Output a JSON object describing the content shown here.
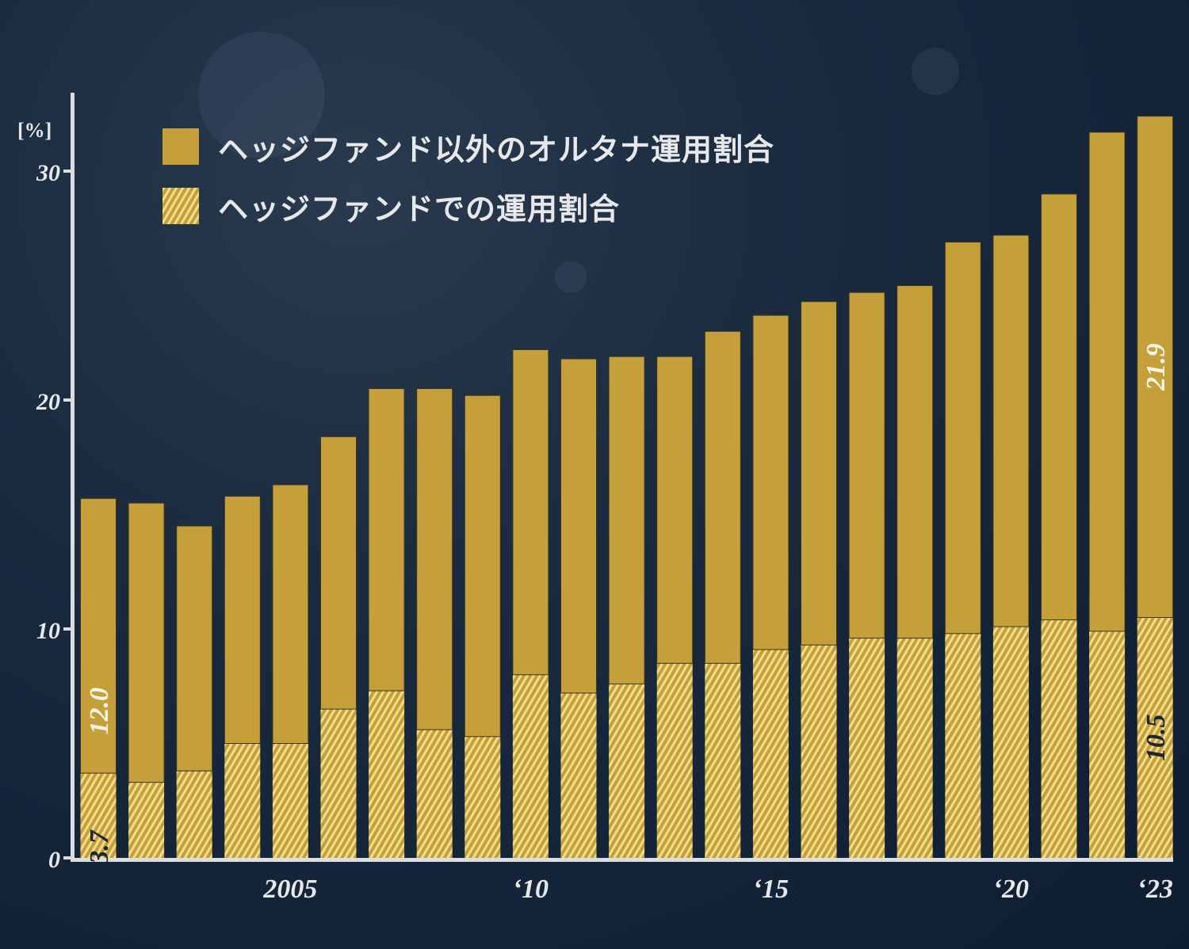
{
  "chart_data": {
    "type": "bar",
    "stacked": true,
    "title": "",
    "xlabel": "",
    "ylabel": "[%]",
    "ylim": [
      0,
      33
    ],
    "yticks": [
      0,
      10,
      20,
      30
    ],
    "grid": false,
    "legend_position": "top-left inside",
    "categories": [
      "2001",
      "2002",
      "2003",
      "2004",
      "2005",
      "2006",
      "2007",
      "2008",
      "2009",
      "2010",
      "2011",
      "2012",
      "2013",
      "2014",
      "2015",
      "2016",
      "2017",
      "2018",
      "2019",
      "2020",
      "2021",
      "2022",
      "2023"
    ],
    "xtick_labels": [
      {
        "category": "2005",
        "label": "2005"
      },
      {
        "category": "2010",
        "label": "‘10"
      },
      {
        "category": "2015",
        "label": "‘15"
      },
      {
        "category": "2020",
        "label": "‘20"
      },
      {
        "category": "2023",
        "label": "‘23"
      }
    ],
    "series": [
      {
        "name": "ヘッジファンドでの運用割合",
        "pattern": "hatched",
        "color": "#f2de8c",
        "values": [
          3.7,
          3.3,
          3.8,
          5.0,
          5.0,
          6.5,
          7.3,
          5.6,
          5.3,
          8.0,
          7.2,
          7.6,
          8.5,
          8.5,
          9.1,
          9.3,
          9.6,
          9.6,
          9.8,
          10.1,
          10.4,
          9.9,
          10.5
        ]
      },
      {
        "name": "ヘッジファンド以外のオルタナ運用割合",
        "pattern": "solid",
        "color": "#c49f3a",
        "values": [
          12.0,
          12.2,
          10.7,
          10.8,
          11.3,
          11.9,
          13.2,
          14.9,
          14.9,
          14.2,
          14.6,
          14.3,
          13.4,
          14.5,
          14.6,
          15.0,
          15.1,
          15.4,
          17.1,
          17.1,
          18.6,
          21.8,
          21.9
        ]
      }
    ],
    "annotations": [
      {
        "category": "2001",
        "series": "ヘッジファンドでの運用割合",
        "text": "3.7"
      },
      {
        "category": "2001",
        "series": "ヘッジファンド以外のオルタナ運用割合",
        "text": "12.0"
      },
      {
        "category": "2023",
        "series": "ヘッジファンドでの運用割合",
        "text": "10.5"
      },
      {
        "category": "2023",
        "series": "ヘッジファンド以外のオルタナ運用割合",
        "text": "21.9"
      }
    ]
  },
  "legend": {
    "items": [
      {
        "label": "ヘッジファンド以外のオルタナ運用割合",
        "swatch": "solid"
      },
      {
        "label": "ヘッジファンドでの運用割合",
        "swatch": "hatch"
      }
    ]
  },
  "axis": {
    "unit": "[%]"
  },
  "colors": {
    "solid": "#c49f3a",
    "hatch_light": "#f2de8c",
    "axis": "#dcdde0",
    "text": "#e8e8ea",
    "label_dark": "#1a2638"
  }
}
